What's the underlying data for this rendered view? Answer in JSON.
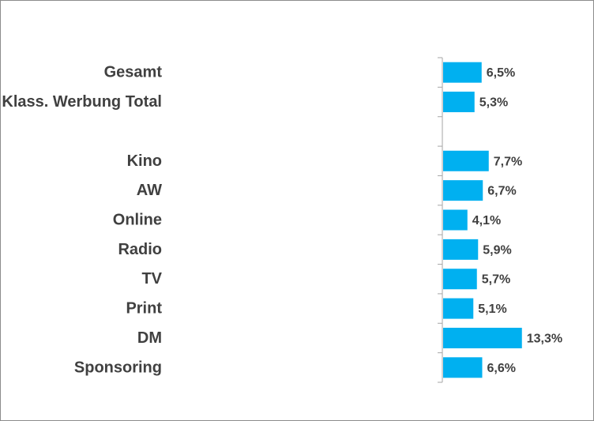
{
  "chart_data": {
    "type": "bar",
    "orientation": "horizontal",
    "categories": [
      "Gesamt",
      "Klass. Werbung Total",
      "",
      "Kino",
      "AW",
      "Online",
      "Radio",
      "TV",
      "Print",
      "DM",
      "Sponsoring"
    ],
    "values": [
      6.5,
      5.3,
      null,
      7.7,
      6.7,
      4.1,
      5.9,
      5.7,
      5.1,
      13.3,
      6.6
    ],
    "data_labels": [
      "6,5%",
      "5,3%",
      "",
      "7,7%",
      "6,7%",
      "4,1%",
      "5,9%",
      "5,7%",
      "5,1%",
      "13,3%",
      "6,6%"
    ],
    "title": "",
    "xlabel": "",
    "ylabel": "",
    "grid": false,
    "bar_color": "#00B0F0"
  }
}
